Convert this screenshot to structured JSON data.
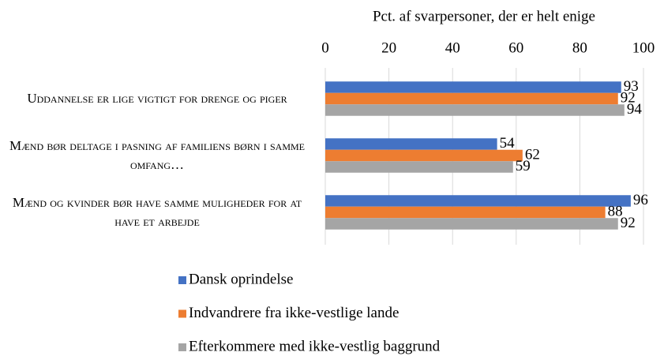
{
  "chart_data": {
    "type": "barh",
    "x_label": "Pct. af svarpersoner, der er helt enige",
    "categories": [
      "Uddannelse er lige vigtigt for drenge og piger",
      "Mænd bør deltage i pasning af familiens børn i samme omfang…",
      "Mænd og kvinder bør have samme muligheder for at have et arbejde"
    ],
    "series": [
      {
        "name": "Dansk oprindelse",
        "color": "#4472c4",
        "values": [
          93,
          54,
          96
        ]
      },
      {
        "name": "Indvandrere fra ikke-vestlige lande",
        "color": "#ed7d31",
        "values": [
          92,
          62,
          88
        ]
      },
      {
        "name": "Efterkommere med ikke-vestlig baggrund",
        "color": "#a5a5a5",
        "values": [
          94,
          59,
          92
        ]
      }
    ],
    "xlim": [
      0,
      100
    ],
    "xticks": [
      0,
      20,
      40,
      60,
      80,
      100
    ],
    "grid": true,
    "legend": "bottom"
  }
}
